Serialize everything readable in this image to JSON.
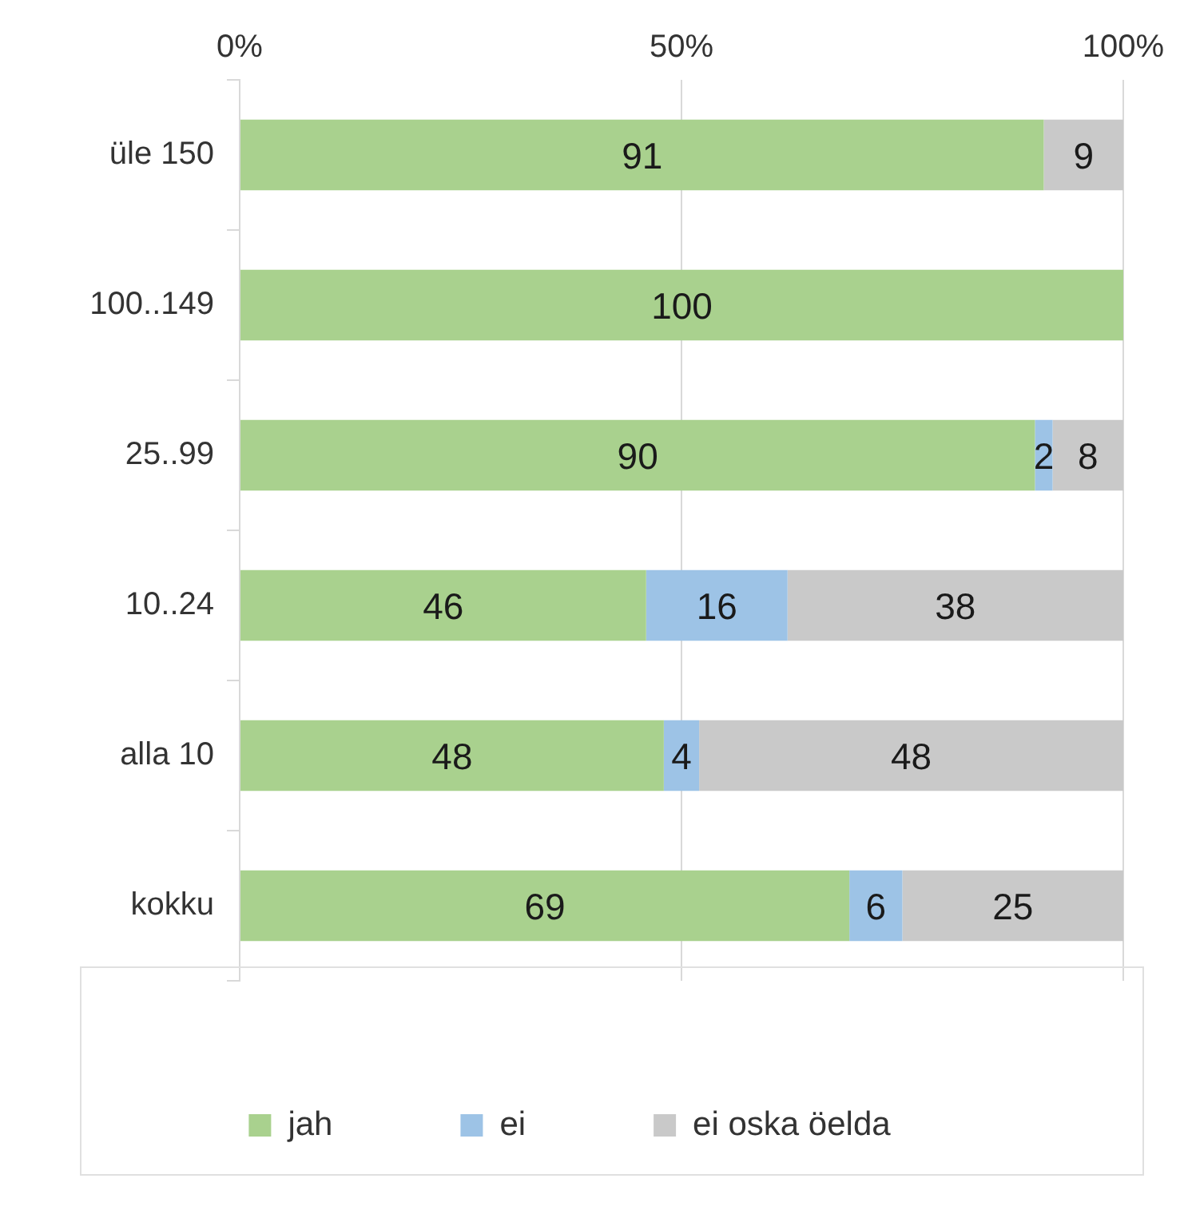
{
  "chart_data": {
    "type": "bar",
    "orientation": "horizontal",
    "stacked": true,
    "categories": [
      "üle 150",
      "100..149",
      "25..99",
      "10..24",
      "alla 10",
      "kokku"
    ],
    "series": [
      {
        "name": "jah",
        "color": "#a9d18e",
        "values": [
          91,
          100,
          90,
          46,
          48,
          69
        ]
      },
      {
        "name": "ei",
        "color": "#9dc3e6",
        "values": [
          null,
          null,
          2,
          16,
          4,
          6
        ]
      },
      {
        "name": "ei oska öelda",
        "color": "#c9c9c9",
        "values": [
          9,
          null,
          8,
          38,
          48,
          25
        ]
      }
    ],
    "xlim": [
      0,
      100
    ],
    "xticks": [
      {
        "value": 0,
        "label": "0%"
      },
      {
        "value": 50,
        "label": "50%"
      },
      {
        "value": 100,
        "label": "100%"
      }
    ],
    "grid": "x",
    "legend": "bottom",
    "data_labels": true
  }
}
